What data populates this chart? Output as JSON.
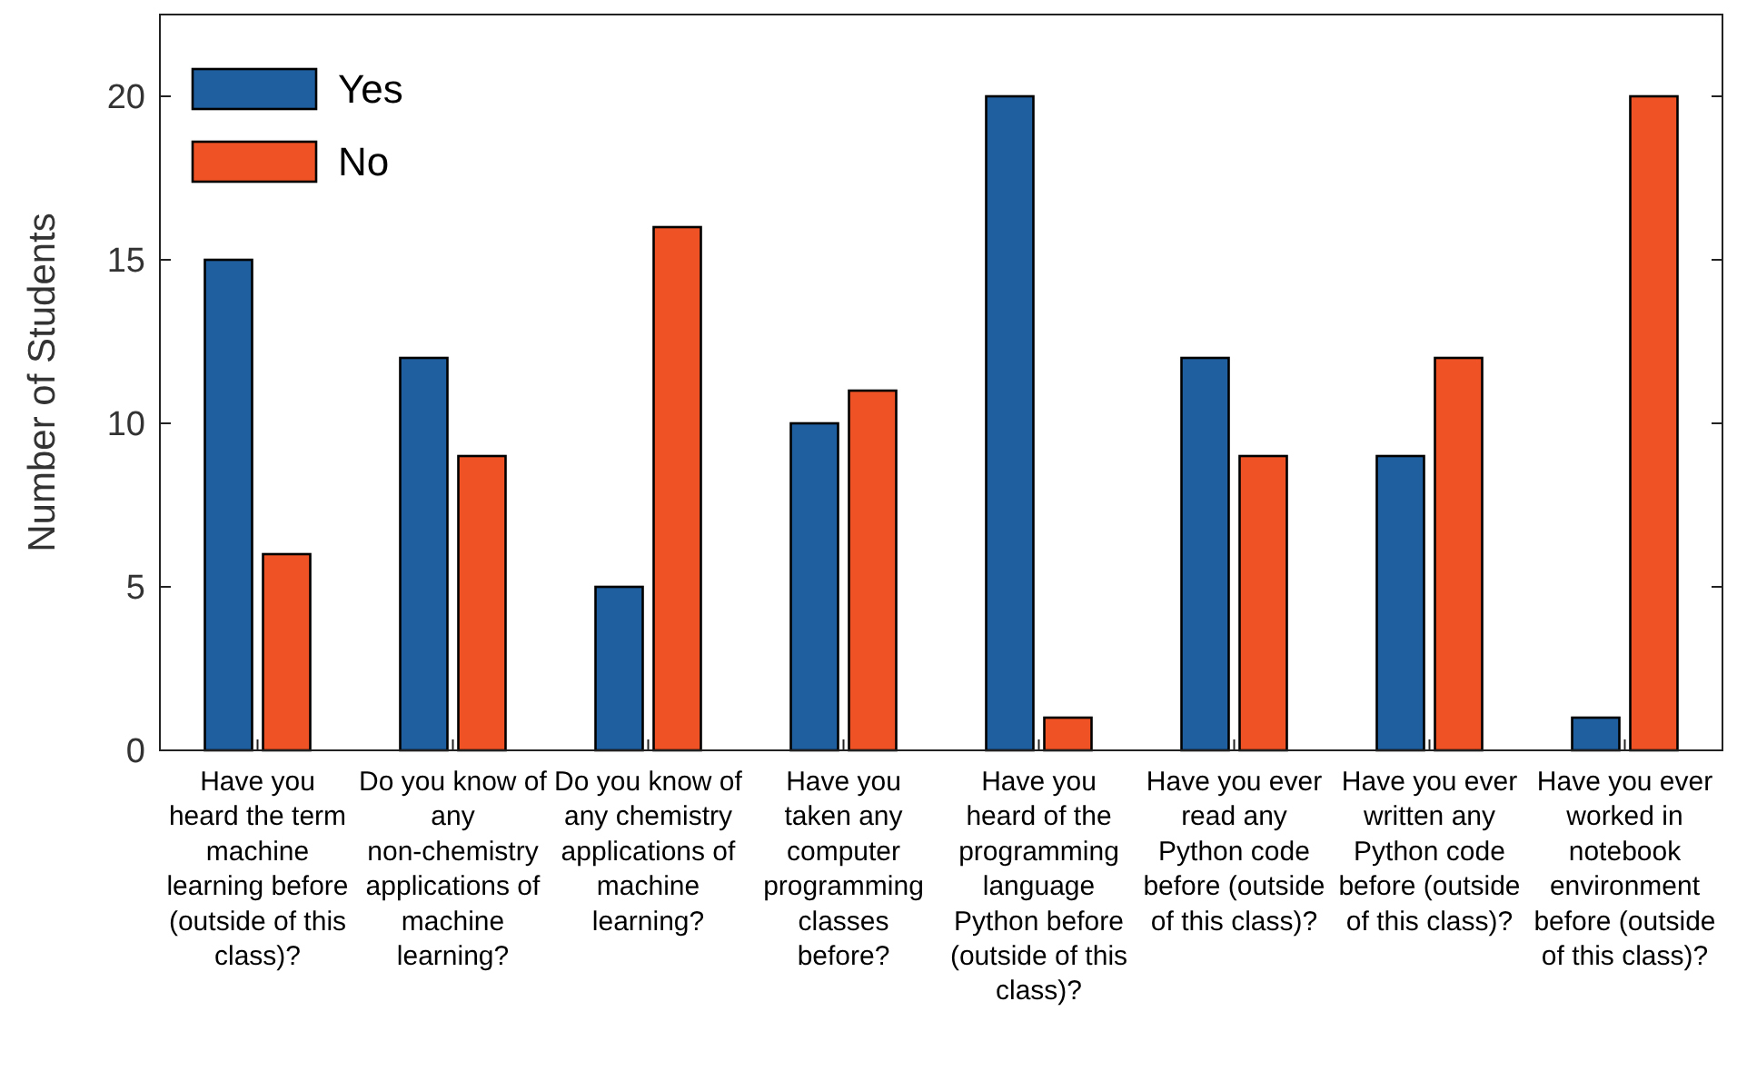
{
  "chart_data": {
    "type": "bar",
    "ylabel": "Number of Students",
    "categories": [
      "Have you heard the term machine learning before (outside of this class)?",
      "Do you know of any non-chemistry applications of machine learning?",
      "Do you know of any chemistry applications of machine learning?",
      "Have you taken any computer programming classes before?",
      "Have you heard of the programming language Python before (outside of this class)?",
      "Have you ever read any Python code before (outside of this class)?",
      "Have you ever written any Python code before (outside of this class)?",
      "Have you ever worked in notebook environment before (outside of this class)?"
    ],
    "series": [
      {
        "name": "Yes",
        "color": "#1f5f9f",
        "values": [
          15,
          12,
          5,
          10,
          20,
          12,
          9,
          1
        ]
      },
      {
        "name": "No",
        "color": "#ef5325",
        "values": [
          6,
          9,
          16,
          11,
          1,
          9,
          12,
          20
        ]
      }
    ],
    "ylim": [
      0,
      22.5
    ],
    "yticks": [
      0,
      5,
      10,
      15,
      20
    ],
    "grid": false,
    "legend": "top left"
  }
}
